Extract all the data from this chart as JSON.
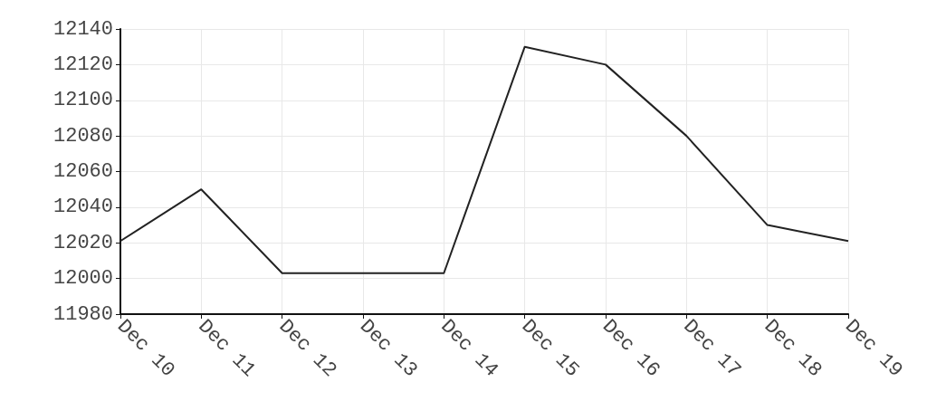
{
  "chart_data": {
    "type": "line",
    "categories": [
      "Dec 10",
      "Dec 11",
      "Dec 12",
      "Dec 13",
      "Dec 14",
      "Dec 15",
      "Dec 16",
      "Dec 17",
      "Dec 18",
      "Dec 19"
    ],
    "series": [
      {
        "color": "#222222",
        "values": [
          12021,
          12050,
          12003,
          12003,
          12003,
          12130,
          12120,
          12080,
          12030,
          12021
        ]
      }
    ],
    "ylim": [
      11980,
      12140
    ],
    "yticks": [
      11980,
      12000,
      12020,
      12040,
      12060,
      12080,
      12100,
      12120,
      12140
    ],
    "grid": true,
    "marker": "none",
    "line_style": "solid"
  }
}
